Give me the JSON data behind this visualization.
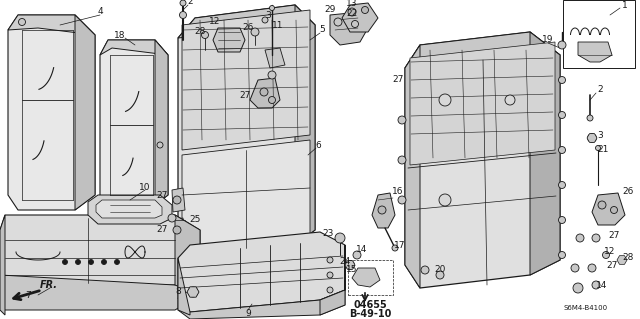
{
  "bg_color": "#ffffff",
  "lc": "#1a1a1a",
  "part_code": "04655\nB-49-10",
  "part_ref": "S6M4-B4100",
  "figsize": [
    6.4,
    3.19
  ],
  "dpi": 100
}
